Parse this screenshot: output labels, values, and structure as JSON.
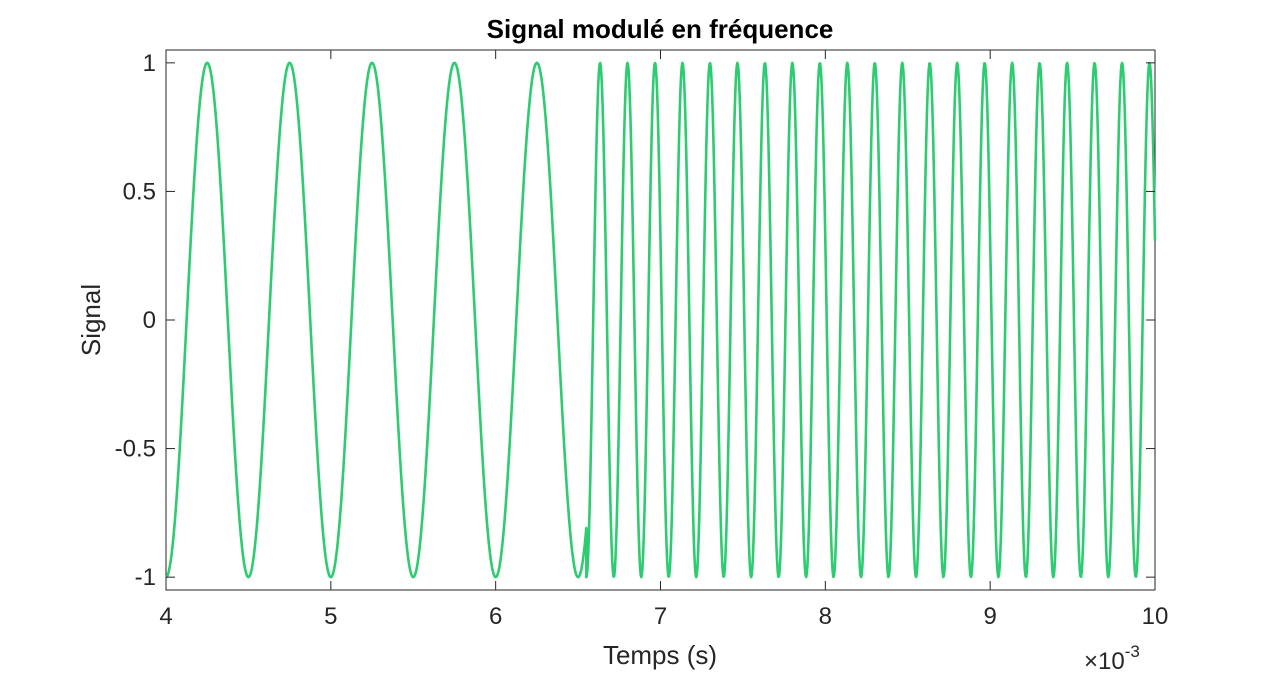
{
  "chart_data": {
    "type": "line",
    "title": "Signal modulé en fréquence",
    "xlabel": "Temps (s)",
    "ylabel": "Signal",
    "x_exponent": {
      "prefix": "×10",
      "power": "-3"
    },
    "xlim": [
      0.004,
      0.01
    ],
    "ylim": [
      -1.05,
      1.05
    ],
    "x_ticks": [
      {
        "value": 0.004,
        "label": "4"
      },
      {
        "value": 0.005,
        "label": "5"
      },
      {
        "value": 0.006,
        "label": "6"
      },
      {
        "value": 0.007,
        "label": "7"
      },
      {
        "value": 0.008,
        "label": "8"
      },
      {
        "value": 0.009,
        "label": "9"
      },
      {
        "value": 0.01,
        "label": "10"
      }
    ],
    "y_ticks": [
      {
        "value": -1,
        "label": "-1"
      },
      {
        "value": -0.5,
        "label": "-0.5"
      },
      {
        "value": 0,
        "label": "0"
      },
      {
        "value": 0.5,
        "label": "0.5"
      },
      {
        "value": 1,
        "label": "1"
      }
    ],
    "grid": false,
    "series": [
      {
        "color": "#2ECC71",
        "segments": [
          {
            "x_start": 0.004,
            "x_end": 0.00655,
            "frequency_hz": 2000,
            "amplitude": 1,
            "phase_rad": 4.712
          },
          {
            "x_start": 0.00655,
            "x_end": 0.01,
            "frequency_hz": 6000,
            "amplitude": 1,
            "phase_rad": -1.571
          }
        ]
      }
    ]
  }
}
